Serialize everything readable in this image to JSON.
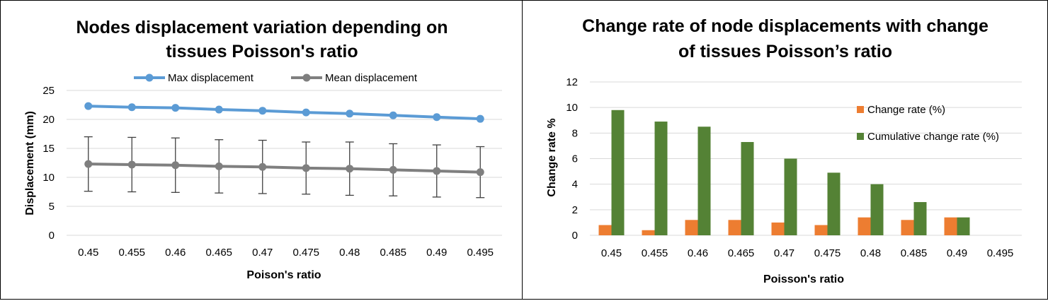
{
  "chart_data": [
    {
      "type": "line",
      "title_lines": [
        "Nodes displacement variation depending on",
        "tissues Poisson's ratio"
      ],
      "xlabel": "Poison's ratio",
      "ylabel": "Displacement (mm)",
      "categories": [
        "0.45",
        "0.455",
        "0.46",
        "0.465",
        "0.47",
        "0.475",
        "0.48",
        "0.485",
        "0.49",
        "0.495"
      ],
      "ylim": [
        0,
        25
      ],
      "yticks": [
        0,
        5,
        10,
        15,
        20,
        25
      ],
      "grid": true,
      "legend_position": "top",
      "series": [
        {
          "name": "Max displacement",
          "color": "#5b9bd5",
          "values": [
            22.3,
            22.1,
            22.0,
            21.7,
            21.5,
            21.2,
            21.0,
            20.7,
            20.4,
            20.1
          ]
        },
        {
          "name": "Mean displacement",
          "color": "#7f7f7f",
          "values": [
            12.3,
            12.2,
            12.1,
            11.9,
            11.8,
            11.6,
            11.5,
            11.3,
            11.1,
            10.9
          ],
          "error_bars": [
            4.7,
            4.7,
            4.7,
            4.6,
            4.6,
            4.5,
            4.6,
            4.5,
            4.5,
            4.4
          ]
        }
      ]
    },
    {
      "type": "bar",
      "title_lines": [
        "Change rate of node displacements with change",
        "of  tissues Poisson’s ratio"
      ],
      "xlabel": "Poisson's ratio",
      "ylabel": "Change rate %",
      "categories": [
        "0.45",
        "0.455",
        "0.46",
        "0.465",
        "0.47",
        "0.475",
        "0.48",
        "0.485",
        "0.49",
        "0.495"
      ],
      "ylim": [
        0,
        12
      ],
      "yticks": [
        0,
        2,
        4,
        6,
        8,
        10,
        12
      ],
      "grid": true,
      "legend_position": "right",
      "series": [
        {
          "name": "Change rate (%)",
          "color": "#ed7d31",
          "values": [
            0.8,
            0.4,
            1.2,
            1.2,
            1.0,
            0.8,
            1.4,
            1.2,
            1.4,
            0
          ]
        },
        {
          "name": "Cumulative change rate (%)",
          "color": "#548235",
          "values": [
            9.8,
            8.9,
            8.5,
            7.3,
            6.0,
            4.9,
            4.0,
            2.6,
            1.4,
            0
          ]
        }
      ]
    }
  ]
}
